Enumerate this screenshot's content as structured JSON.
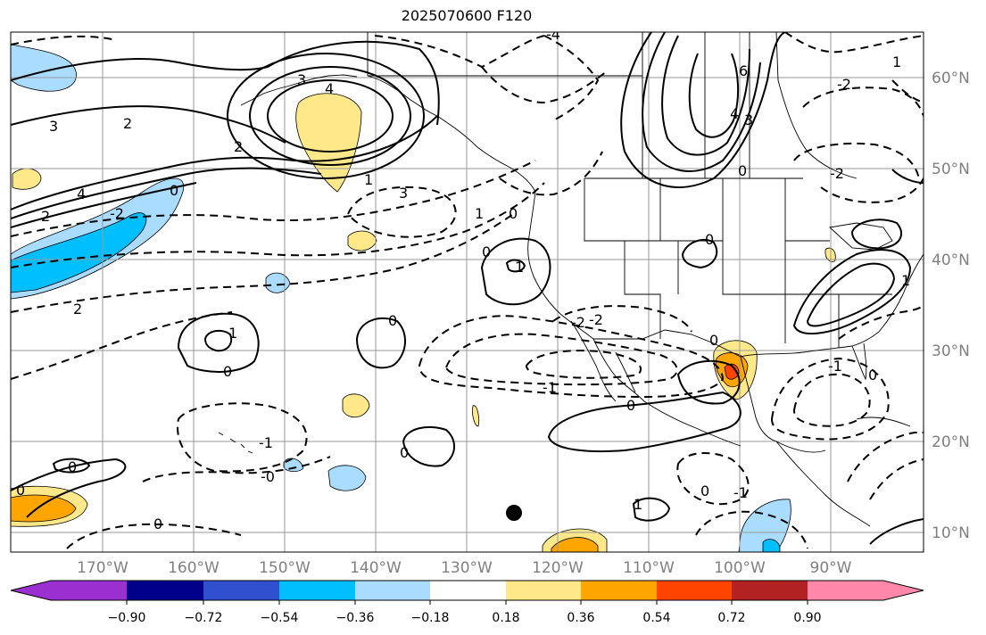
{
  "map": {
    "title": "2025070600 F120",
    "latitude_labels": [
      "60°N",
      "50°N",
      "40°N",
      "30°N",
      "20°N",
      "10°N"
    ],
    "longitude_labels": [
      "170°W",
      "160°W",
      "150°W",
      "140°W",
      "130°W",
      "120°W",
      "110°W",
      "100°W",
      "90°W"
    ],
    "contour_labels": [
      "-4",
      "3",
      "4",
      "2",
      "3",
      "4",
      "2",
      "0",
      "1",
      "3",
      "6",
      "4",
      "3",
      "0",
      "-2",
      "2",
      "1",
      "1",
      "2",
      "0",
      "0",
      "-2",
      "0",
      "0",
      "1",
      "-2",
      "-2",
      "-2",
      "0",
      "0",
      "-1",
      "-1",
      "0",
      "1",
      "0",
      "0",
      "-1",
      "-0",
      "0",
      "0",
      "0",
      "-1",
      "1",
      "0",
      "1"
    ],
    "marker": "black-dot",
    "colors": {
      "fill_weak_negative": "#aadcff",
      "fill_negative": "#00bfff",
      "fill_weak_positive": "#ffe88a",
      "fill_positive": "#ffa500",
      "fill_strong_positive": "#ff4400"
    }
  },
  "colorbar": {
    "tick_labels": [
      "−0.90",
      "−0.72",
      "−0.54",
      "−0.36",
      "−0.18",
      "0.18",
      "0.36",
      "0.54",
      "0.72",
      "0.90"
    ],
    "colors": [
      "#9b30d0",
      "#00008b",
      "#3050d0",
      "#00bfff",
      "#aadcff",
      "#ffffff",
      "#ffe88a",
      "#ffa500",
      "#ff4400",
      "#b22222",
      "#ff88aa"
    ]
  }
}
